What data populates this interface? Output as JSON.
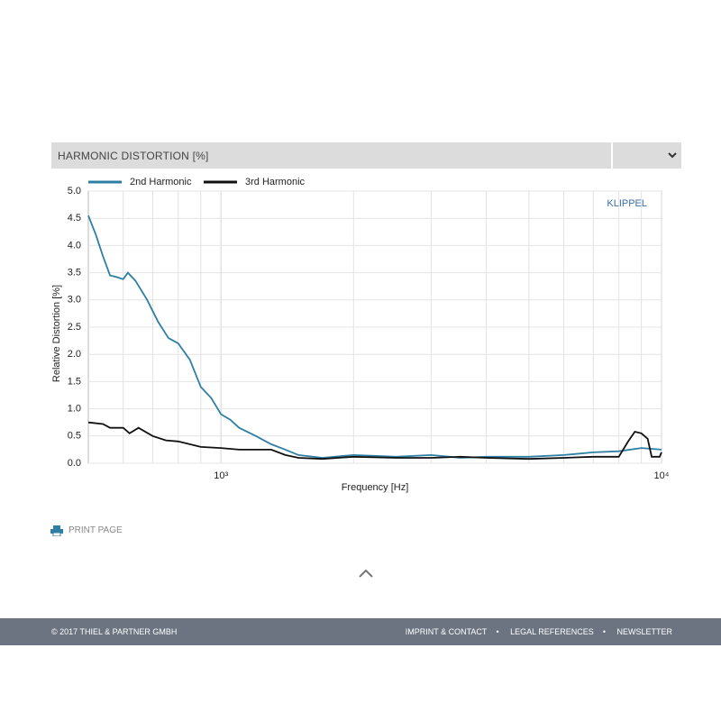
{
  "panel": {
    "title": "HARMONIC DISTORTION [%]"
  },
  "chart_data": {
    "type": "line",
    "annotation": "KLIPPEL",
    "xlabel": "Frequency  [Hz]",
    "ylabel": "Relative Distortion  [%]",
    "xscale": "log",
    "xlim": [
      500,
      10000
    ],
    "xticks": [
      {
        "value": 1000,
        "label": "10³"
      },
      {
        "value": 10000,
        "label": "10⁴"
      }
    ],
    "xminor_grid": [
      600,
      700,
      800,
      900,
      2000,
      3000,
      4000,
      5000,
      6000,
      7000,
      8000,
      9000
    ],
    "ylim": [
      0,
      5
    ],
    "yticks": [
      {
        "value": 0,
        "label": "0.0"
      },
      0.5,
      {
        "value": 1,
        "label": "1.0"
      },
      1.5,
      {
        "value": 2,
        "label": "2.0"
      },
      2.5,
      {
        "value": 3,
        "label": "3.0"
      },
      3.5,
      {
        "value": 4,
        "label": "4.0"
      },
      4.5,
      {
        "value": 5,
        "label": "5.0"
      }
    ],
    "grid": true,
    "series": [
      {
        "name": "2nd Harmonic",
        "color": "#2e7fa3",
        "x": [
          500,
          520,
          540,
          560,
          580,
          600,
          615,
          640,
          680,
          720,
          760,
          800,
          850,
          900,
          950,
          1000,
          1050,
          1100,
          1200,
          1300,
          1400,
          1500,
          1700,
          2000,
          2500,
          3000,
          3500,
          4000,
          5000,
          6000,
          7000,
          8000,
          9000,
          10000
        ],
        "values": [
          4.55,
          4.2,
          3.8,
          3.45,
          3.42,
          3.38,
          3.5,
          3.35,
          3.0,
          2.6,
          2.3,
          2.2,
          1.9,
          1.4,
          1.2,
          0.9,
          0.8,
          0.65,
          0.5,
          0.35,
          0.25,
          0.15,
          0.1,
          0.15,
          0.12,
          0.15,
          0.1,
          0.12,
          0.12,
          0.15,
          0.2,
          0.22,
          0.28,
          0.25
        ]
      },
      {
        "name": "3rd Harmonic",
        "color": "#111111",
        "x": [
          500,
          540,
          560,
          600,
          620,
          650,
          700,
          750,
          800,
          900,
          1000,
          1100,
          1200,
          1300,
          1400,
          1500,
          1700,
          2000,
          2500,
          3000,
          3500,
          4000,
          5000,
          6000,
          7000,
          8000,
          8400,
          8700,
          9000,
          9300,
          9500,
          9900,
          10000
        ],
        "values": [
          0.75,
          0.72,
          0.65,
          0.65,
          0.55,
          0.65,
          0.5,
          0.42,
          0.4,
          0.3,
          0.28,
          0.25,
          0.25,
          0.25,
          0.15,
          0.1,
          0.08,
          0.12,
          0.1,
          0.1,
          0.12,
          0.1,
          0.08,
          0.1,
          0.12,
          0.12,
          0.4,
          0.58,
          0.55,
          0.45,
          0.12,
          0.12,
          0.2
        ]
      }
    ]
  },
  "actions": {
    "print": "PRINT PAGE"
  },
  "footer": {
    "copyright": "© 2017 THIEL & PARTNER GMBH",
    "links": [
      "IMPRINT & CONTACT",
      "LEGAL REFERENCES",
      "NEWSLETTER"
    ]
  }
}
